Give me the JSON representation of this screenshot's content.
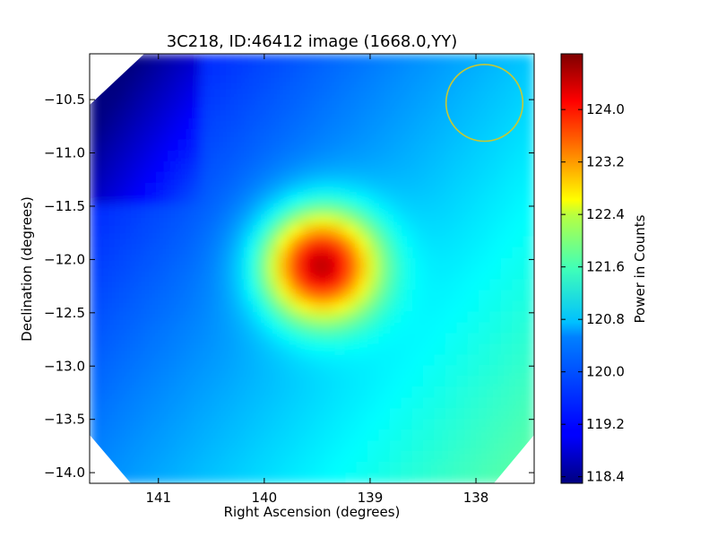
{
  "chart_data": {
    "type": "heatmap",
    "title": "3C218, ID:46412 image (1668.0,YY)",
    "xlabel": "Right Ascension (degrees)",
    "ylabel": "Declination (degrees)",
    "xlim": [
      141.65,
      137.45
    ],
    "ylim": [
      -14.1,
      -10.07
    ],
    "x_ticks": [
      141,
      140,
      139,
      138
    ],
    "x_tick_labels": [
      "141",
      "140",
      "139",
      "138"
    ],
    "y_ticks": [
      -10.5,
      -11.0,
      -11.5,
      -12.0,
      -12.5,
      -13.0,
      -13.5,
      -14.0
    ],
    "y_tick_labels": [
      "−10.5",
      "−11.0",
      "−11.5",
      "−12.0",
      "−12.5",
      "−13.0",
      "−13.5",
      "−14.0"
    ],
    "colorbar": {
      "label": "Power in Counts",
      "range": [
        118.3,
        124.85
      ],
      "ticks": [
        118.4,
        119.2,
        120.0,
        120.8,
        121.6,
        122.4,
        123.2,
        124.0
      ],
      "tick_labels": [
        "118.4",
        "119.2",
        "120.0",
        "120.8",
        "121.6",
        "122.4",
        "123.2",
        "124.0"
      ],
      "colormap": "jet"
    },
    "peak": {
      "ra": 139.47,
      "dec": -12.05,
      "value": 124.75
    },
    "circle": {
      "ra": 137.92,
      "dec": -10.53,
      "radius_deg": 0.36,
      "color": "#c8c832"
    },
    "grid": false
  }
}
